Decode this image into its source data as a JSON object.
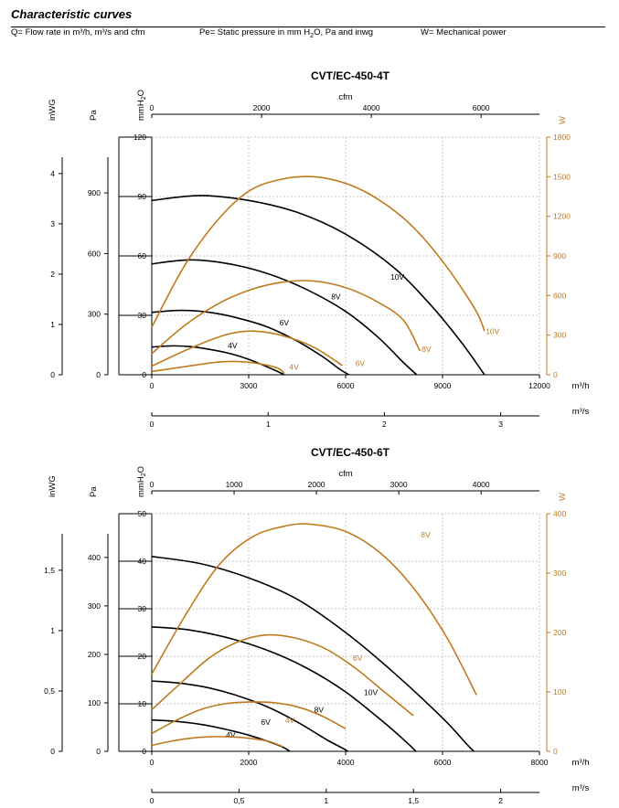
{
  "header": {
    "title": "Characteristic curves",
    "legend_q": "Q= Flow rate in m³/h, m³/s and cfm",
    "legend_pe_pre": "Pe= Static pressure in mm H",
    "legend_pe_sub": "2",
    "legend_pe_post": "O, Pa and inwg",
    "legend_w": "W= Mechanical power"
  },
  "colors": {
    "pressure_curve": "#000000",
    "power_curve": "#c07a1e",
    "grid": "#b8b8b8"
  },
  "chart_data": [
    {
      "type": "line",
      "title": "CVT/EC-450-4T",
      "x_label": "m³/h",
      "x_range": [
        0,
        12000
      ],
      "x_ticks": [
        0,
        3000,
        6000,
        9000,
        12000
      ],
      "x_ticks_text": [
        "0",
        "3000",
        "6000",
        "9000",
        "12000"
      ],
      "top_axis": {
        "label": "cfm",
        "ticks": [
          "0",
          "2000",
          "4000",
          "6000"
        ],
        "values": [
          0,
          2000,
          4000,
          6000
        ]
      },
      "bottom_axis": {
        "label": "m³/s",
        "ticks": [
          "0",
          "1",
          "2",
          "3"
        ],
        "values": [
          0,
          1,
          2,
          3
        ]
      },
      "y_left": {
        "label": "mmH2O",
        "label_main": "mmH",
        "label_sub": "2",
        "label_end": "O",
        "range": [
          0,
          120
        ],
        "ticks": [
          "0",
          "30",
          "60",
          "90",
          "120"
        ],
        "values": [
          0,
          30,
          60,
          90,
          120
        ]
      },
      "pa_axis": {
        "label": "Pa",
        "ticks": [
          "0",
          "300",
          "600",
          "900"
        ],
        "values": [
          0,
          30.6,
          61.2,
          91.8
        ]
      },
      "inwg_axis": {
        "label": "inWG",
        "ticks": [
          "0",
          "1",
          "2",
          "3",
          "4"
        ],
        "values": [
          0,
          25.4,
          50.8,
          76.2,
          101.6
        ]
      },
      "y_right": {
        "label": "W",
        "range": [
          0,
          1800
        ],
        "ticks": [
          "0",
          "300",
          "600",
          "900",
          "1200",
          "1500",
          "1800"
        ],
        "values": [
          0,
          300,
          600,
          900,
          1200,
          1500,
          1800
        ]
      },
      "series_pressure": [
        {
          "name": "10V",
          "label_at": [
            7600,
            48
          ],
          "points": [
            [
              0,
              88
            ],
            [
              1500,
              90.5
            ],
            [
              3000,
              88
            ],
            [
              4500,
              82
            ],
            [
              6000,
              71
            ],
            [
              7500,
              54
            ],
            [
              8700,
              34
            ],
            [
              9600,
              16
            ],
            [
              10300,
              0
            ]
          ]
        },
        {
          "name": "8V",
          "label_at": [
            5700,
            38
          ],
          "points": [
            [
              0,
              56
            ],
            [
              1200,
              58
            ],
            [
              2400,
              56
            ],
            [
              3600,
              51
            ],
            [
              4800,
              43
            ],
            [
              6000,
              32
            ],
            [
              7000,
              19
            ],
            [
              7800,
              6
            ],
            [
              8200,
              0
            ]
          ]
        },
        {
          "name": "6V",
          "label_at": [
            4100,
            25
          ],
          "points": [
            [
              0,
              31.5
            ],
            [
              900,
              32.5
            ],
            [
              1800,
              31.5
            ],
            [
              2700,
              28.5
            ],
            [
              3600,
              24
            ],
            [
              4500,
              17
            ],
            [
              5300,
              9
            ],
            [
              5800,
              3
            ],
            [
              6100,
              0
            ]
          ]
        },
        {
          "name": "4V",
          "label_at": [
            2500,
            13.5
          ],
          "points": [
            [
              0,
              14
            ],
            [
              600,
              14.6
            ],
            [
              1200,
              14.2
            ],
            [
              1800,
              12.8
            ],
            [
              2400,
              10.8
            ],
            [
              3000,
              7.8
            ],
            [
              3600,
              3.8
            ],
            [
              3900,
              1.6
            ],
            [
              4100,
              0
            ]
          ]
        }
      ],
      "series_power": [
        {
          "name": "10V",
          "label_at": [
            10550,
            20.5
          ],
          "points": [
            [
              0,
              360
            ],
            [
              1000,
              820
            ],
            [
              2000,
              1160
            ],
            [
              3000,
              1390
            ],
            [
              4000,
              1480
            ],
            [
              5000,
              1500
            ],
            [
              6000,
              1450
            ],
            [
              7000,
              1330
            ],
            [
              8000,
              1140
            ],
            [
              9000,
              860
            ],
            [
              10000,
              500
            ],
            [
              10300,
              330
            ]
          ]
        },
        {
          "name": "8V",
          "label_at": [
            8500,
            11.5
          ],
          "points": [
            [
              0,
              160
            ],
            [
              1000,
              370
            ],
            [
              2000,
              530
            ],
            [
              3000,
              640
            ],
            [
              4000,
              700
            ],
            [
              5000,
              710
            ],
            [
              6000,
              660
            ],
            [
              7000,
              550
            ],
            [
              7800,
              410
            ],
            [
              8300,
              180
            ]
          ]
        },
        {
          "name": "6V",
          "label_at": [
            6450,
            4.5
          ],
          "points": [
            [
              0,
              65
            ],
            [
              1000,
              180
            ],
            [
              2000,
              280
            ],
            [
              2600,
              320
            ],
            [
              3200,
              330
            ],
            [
              4000,
              300
            ],
            [
              5000,
              210
            ],
            [
              5900,
              70
            ]
          ]
        },
        {
          "name": "4V",
          "label_at": [
            4400,
            2.5
          ],
          "points": [
            [
              0,
              25
            ],
            [
              1000,
              60
            ],
            [
              2000,
              95
            ],
            [
              2700,
              100
            ],
            [
              3400,
              80
            ],
            [
              3900,
              50
            ],
            [
              4100,
              10
            ]
          ]
        }
      ]
    },
    {
      "type": "line",
      "title": "CVT/EC-450-6T",
      "x_label": "m³/h",
      "x_range": [
        0,
        8000
      ],
      "x_ticks": [
        0,
        2000,
        4000,
        6000,
        8000
      ],
      "x_ticks_text": [
        "0",
        "2000",
        "4000",
        "6000",
        "8000"
      ],
      "top_axis": {
        "label": "cfm",
        "ticks": [
          "0",
          "1000",
          "2000",
          "3000",
          "4000"
        ],
        "values": [
          0,
          1000,
          2000,
          3000,
          4000
        ]
      },
      "bottom_axis": {
        "label": "m³/s",
        "ticks": [
          "0",
          "0,5",
          "1",
          "1,5",
          "2"
        ],
        "values": [
          0,
          0.5,
          1,
          1.5,
          2
        ]
      },
      "y_left": {
        "label": "mmH2O",
        "label_main": "mmH",
        "label_sub": "2",
        "label_end": "O",
        "range": [
          0,
          50
        ],
        "ticks": [
          "0",
          "10",
          "20",
          "30",
          "40",
          "50"
        ],
        "values": [
          0,
          10,
          20,
          30,
          40,
          50
        ]
      },
      "pa_axis": {
        "label": "Pa",
        "ticks": [
          "0",
          "100",
          "200",
          "300",
          "400"
        ],
        "values": [
          0,
          10.2,
          20.4,
          30.6,
          40.8
        ]
      },
      "inwg_axis": {
        "label": "inWG",
        "ticks": [
          "0",
          "0,5",
          "1",
          "1,5"
        ],
        "values": [
          0,
          12.7,
          25.4,
          38.1
        ]
      },
      "y_right": {
        "label": "W",
        "range": [
          0,
          400
        ],
        "ticks": [
          "0",
          "100",
          "200",
          "300",
          "400"
        ],
        "values": [
          0,
          100,
          200,
          300,
          400
        ]
      },
      "series_pressure": [
        {
          "name": "10V",
          "label_at": [
            4520,
            11.8
          ],
          "points": [
            [
              0,
              41
            ],
            [
              1000,
              39.5
            ],
            [
              2000,
              36.5
            ],
            [
              3000,
              32
            ],
            [
              4000,
              25
            ],
            [
              5000,
              16.5
            ],
            [
              6000,
              7
            ],
            [
              6500,
              1.5
            ],
            [
              6650,
              0
            ]
          ]
        },
        {
          "name": "8V",
          "label_at": [
            3450,
            8.2
          ],
          "points": [
            [
              0,
              26.2
            ],
            [
              800,
              25.5
            ],
            [
              1600,
              23.8
            ],
            [
              2400,
              21.2
            ],
            [
              3200,
              17.5
            ],
            [
              4000,
              12.5
            ],
            [
              4800,
              6
            ],
            [
              5300,
              1.5
            ],
            [
              5450,
              0
            ]
          ]
        },
        {
          "name": "6V",
          "label_at": [
            2350,
            5.6
          ],
          "points": [
            [
              0,
              14.8
            ],
            [
              600,
              14.3
            ],
            [
              1200,
              13.3
            ],
            [
              1800,
              11.6
            ],
            [
              2400,
              9.3
            ],
            [
              3000,
              6.2
            ],
            [
              3600,
              2.5
            ],
            [
              3950,
              0.6
            ],
            [
              4050,
              0
            ]
          ]
        },
        {
          "name": "4V",
          "label_at": [
            1630,
            2.9
          ],
          "points": [
            [
              0,
              6.6
            ],
            [
              500,
              6.3
            ],
            [
              1000,
              5.7
            ],
            [
              1500,
              4.7
            ],
            [
              2000,
              3.4
            ],
            [
              2400,
              2.1
            ],
            [
              2700,
              0.9
            ],
            [
              2850,
              0
            ]
          ]
        }
      ],
      "series_power": [
        {
          "name": "10V",
          "label_at": [
            7060,
            90
          ],
          "points": [
            [
              0,
              130
            ],
            [
              700,
              230
            ],
            [
              1400,
              315
            ],
            [
              2100,
              362
            ],
            [
              2800,
              380
            ],
            [
              3300,
              382
            ],
            [
              4000,
              370
            ],
            [
              4700,
              335
            ],
            [
              5400,
              275
            ],
            [
              6100,
              190
            ],
            [
              6700,
              95
            ]
          ]
        },
        {
          "name": "8V",
          "label_at": [
            5650,
            45
          ],
          "points": [
            [
              0,
              70
            ],
            [
              600,
              115
            ],
            [
              1200,
              158
            ],
            [
              1800,
              185
            ],
            [
              2400,
              196
            ],
            [
              3000,
              190
            ],
            [
              3600,
              172
            ],
            [
              4200,
              140
            ],
            [
              4800,
              100
            ],
            [
              5400,
              60
            ]
          ]
        },
        {
          "name": "6V",
          "label_at": [
            4250,
            19
          ],
          "points": [
            [
              0,
              30
            ],
            [
              500,
              52
            ],
            [
              1000,
              70
            ],
            [
              1500,
              80
            ],
            [
              2000,
              83
            ],
            [
              2500,
              82
            ],
            [
              3000,
              75
            ],
            [
              3500,
              60
            ],
            [
              4000,
              38
            ]
          ]
        },
        {
          "name": "4V",
          "label_at": [
            2850,
            6
          ],
          "points": [
            [
              0,
              10
            ],
            [
              400,
              17
            ],
            [
              800,
              22
            ],
            [
              1200,
              24.5
            ],
            [
              1600,
              24.5
            ],
            [
              2000,
              22
            ],
            [
              2400,
              17
            ],
            [
              2700,
              8
            ]
          ]
        }
      ]
    }
  ]
}
